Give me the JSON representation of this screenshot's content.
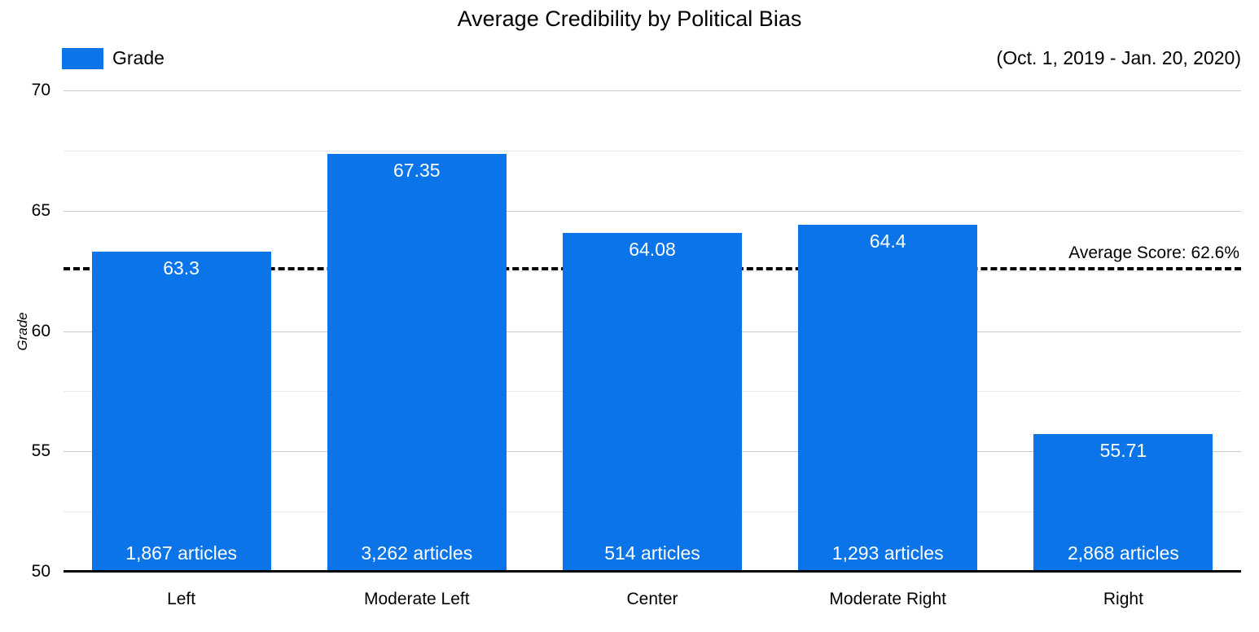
{
  "chart_data": {
    "type": "bar",
    "title": "Average Credibility by Political Bias",
    "subtitle": "(Oct. 1, 2019 - Jan. 20, 2020)",
    "legend": {
      "label": "Grade",
      "position": "top-left"
    },
    "xlabel": "",
    "ylabel": "Grade",
    "ylim": [
      50,
      70
    ],
    "y_major_ticks": [
      50,
      55,
      60,
      65,
      70
    ],
    "y_minor_gridlines": [
      52.5,
      57.5,
      62.5,
      67.5
    ],
    "grid": true,
    "categories": [
      "Left",
      "Moderate Left",
      "Center",
      "Moderate Right",
      "Right"
    ],
    "series": [
      {
        "name": "Grade",
        "values": [
          63.3,
          67.35,
          64.08,
          64.4,
          55.71
        ],
        "value_labels": [
          "63.3",
          "67.35",
          "64.08",
          "64.4",
          "55.71"
        ],
        "bar_annotations": [
          "1,867 articles",
          "3,262 articles",
          "514 articles",
          "1,293 articles",
          "2,868 articles"
        ]
      }
    ],
    "average_line": {
      "value": 62.6,
      "label": "Average Score: 62.6%",
      "style": "dashed",
      "color": "#000000"
    },
    "colors": {
      "bar": "#0b74e8",
      "major_gridline": "#cccccc",
      "minor_gridline": "#e9e9e9",
      "axis_line": "#000000",
      "bar_label_text": "#ffffff"
    }
  }
}
